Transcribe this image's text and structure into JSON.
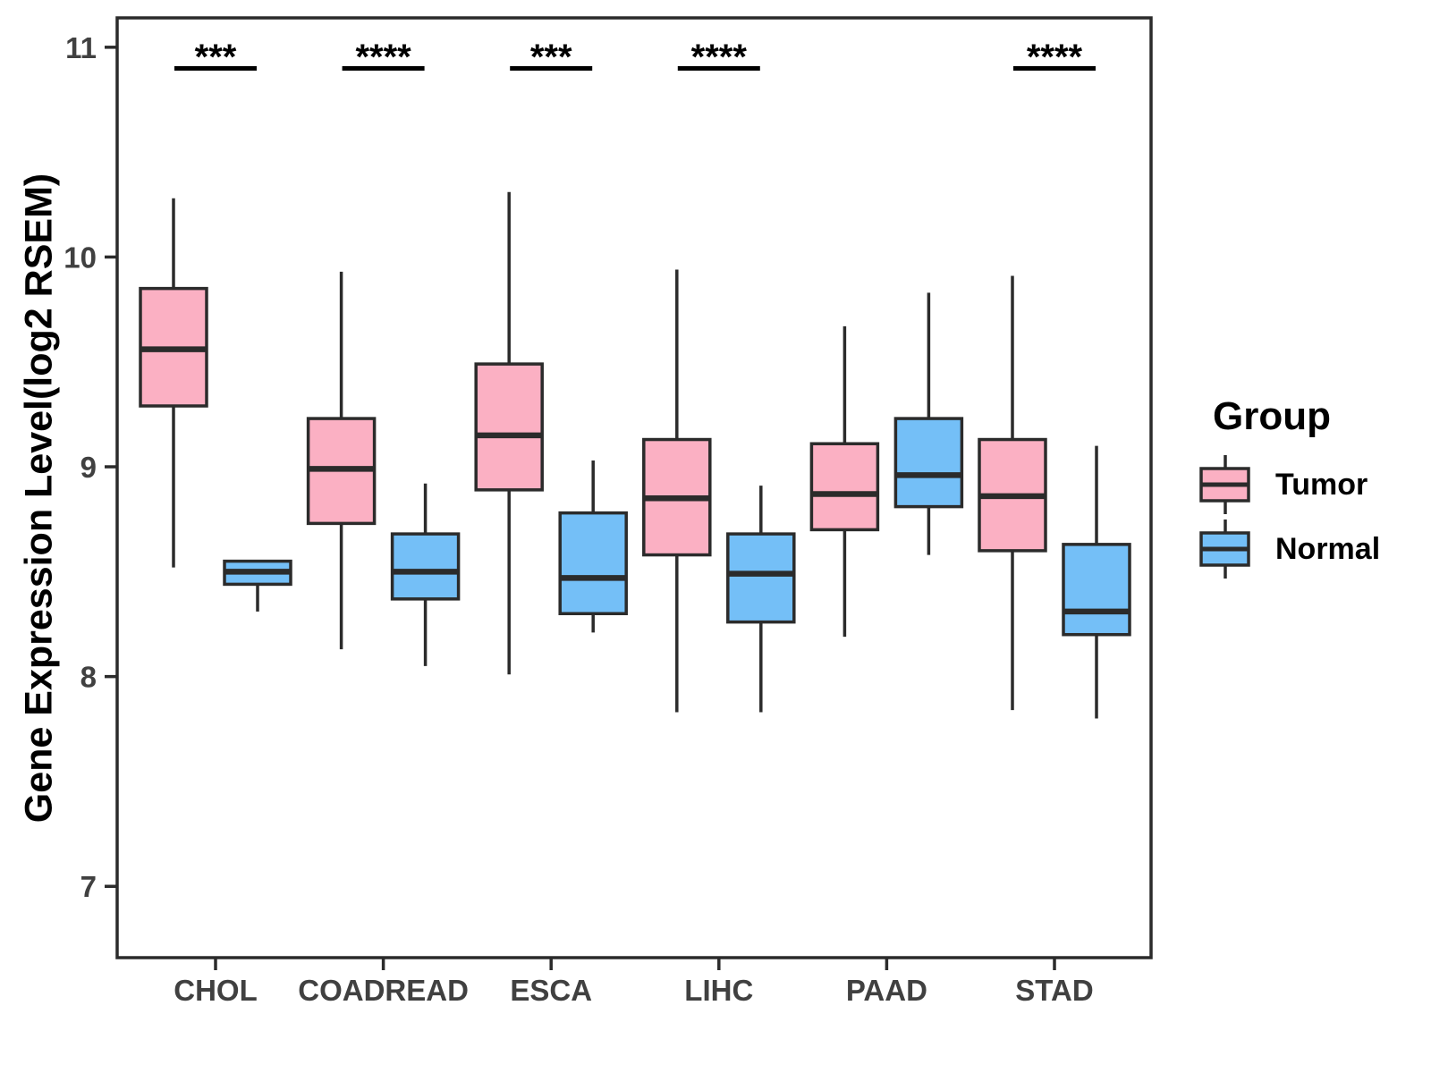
{
  "legend": {
    "title": "Group"
  },
  "chart_data": {
    "type": "boxplot",
    "title": "",
    "xlabel": "",
    "ylabel": "Gene Expression Level(log2 RSEM)",
    "categories": [
      "CHOL",
      "COADREAD",
      "ESCA",
      "LIHC",
      "PAAD",
      "STAD"
    ],
    "yticks": [
      7,
      8,
      9,
      10,
      11
    ],
    "ylim": [
      6.66,
      11.14
    ],
    "grid": false,
    "legend_position": "right",
    "colors": {
      "box_stroke": "#2B2B2B",
      "axis_text": "#404040",
      "panel_border": "#2B2B2B",
      "significance": "#000000"
    },
    "series": [
      {
        "name": "Tumor",
        "color": "#FBB0C3",
        "boxes": [
          {
            "category": "CHOL",
            "whisker_low": 8.52,
            "q1": 9.29,
            "median": 9.56,
            "q3": 9.85,
            "whisker_high": 10.28
          },
          {
            "category": "COADREAD",
            "whisker_low": 8.13,
            "q1": 8.73,
            "median": 8.99,
            "q3": 9.23,
            "whisker_high": 9.93
          },
          {
            "category": "ESCA",
            "whisker_low": 8.01,
            "q1": 8.89,
            "median": 9.15,
            "q3": 9.49,
            "whisker_high": 10.31
          },
          {
            "category": "LIHC",
            "whisker_low": 7.83,
            "q1": 8.58,
            "median": 8.85,
            "q3": 9.13,
            "whisker_high": 9.94
          },
          {
            "category": "PAAD",
            "whisker_low": 8.19,
            "q1": 8.7,
            "median": 8.87,
            "q3": 9.11,
            "whisker_high": 9.67
          },
          {
            "category": "STAD",
            "whisker_low": 7.84,
            "q1": 8.6,
            "median": 8.86,
            "q3": 9.13,
            "whisker_high": 9.91
          }
        ]
      },
      {
        "name": "Normal",
        "color": "#74BFF7",
        "boxes": [
          {
            "category": "CHOL",
            "whisker_low": 8.31,
            "q1": 8.44,
            "median": 8.5,
            "q3": 8.55,
            "whisker_high": 8.55
          },
          {
            "category": "COADREAD",
            "whisker_low": 8.05,
            "q1": 8.37,
            "median": 8.5,
            "q3": 8.68,
            "whisker_high": 8.92
          },
          {
            "category": "ESCA",
            "whisker_low": 8.21,
            "q1": 8.3,
            "median": 8.47,
            "q3": 8.78,
            "whisker_high": 9.03
          },
          {
            "category": "LIHC",
            "whisker_low": 7.83,
            "q1": 8.26,
            "median": 8.49,
            "q3": 8.68,
            "whisker_high": 8.91
          },
          {
            "category": "PAAD",
            "whisker_low": 8.58,
            "q1": 8.81,
            "median": 8.96,
            "q3": 9.23,
            "whisker_high": 9.83
          },
          {
            "category": "STAD",
            "whisker_low": 7.8,
            "q1": 8.2,
            "median": 8.31,
            "q3": 8.63,
            "whisker_high": 9.1
          }
        ]
      }
    ],
    "significance": [
      "***",
      "****",
      "***",
      "****",
      null,
      "****"
    ]
  }
}
